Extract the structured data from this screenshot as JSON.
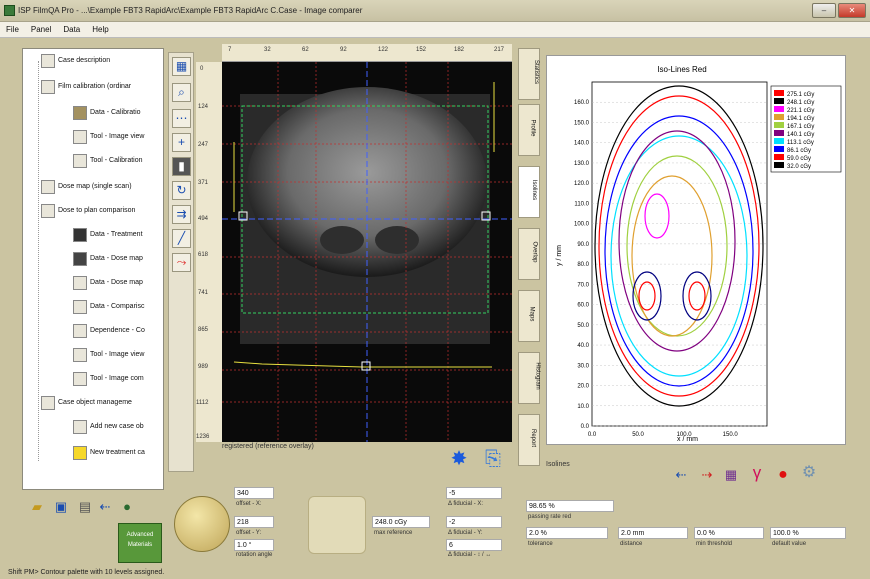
{
  "window": {
    "title": "ISP FilmQA Pro - ...\\Example FBT3 RapidArc\\Example FBT3 RapidArc C.Case - Image comparer",
    "min": "–",
    "max": "□",
    "close": "✕"
  },
  "menu": [
    "File",
    "Panel",
    "Data",
    "Help"
  ],
  "tree": [
    {
      "label": "Case description",
      "level": 0
    },
    {
      "label": "Film calibration (ordinar",
      "level": 0
    },
    {
      "label": "Data - Calibratio",
      "level": 1
    },
    {
      "label": "Tool - Image view",
      "level": 1
    },
    {
      "label": "Tool - Calibration",
      "level": 1
    },
    {
      "label": "Dose map (single scan)",
      "level": 0
    },
    {
      "label": "Dose to plan comparison",
      "level": 0
    },
    {
      "label": "Data - Treatment",
      "level": 1
    },
    {
      "label": "Data - Dose map",
      "level": 1
    },
    {
      "label": "Data - Dose map",
      "level": 1
    },
    {
      "label": "Data - Comparisc",
      "level": 1
    },
    {
      "label": "Dependence - Co",
      "level": 1
    },
    {
      "label": "Tool - Image view",
      "level": 1
    },
    {
      "label": "Tool - Image com",
      "level": 1
    },
    {
      "label": "Case object manageme",
      "level": 0
    },
    {
      "label": "Add new case ob",
      "level": 1
    },
    {
      "label": "New treatment ca",
      "level": 1
    }
  ],
  "ruler": {
    "top": [
      "7",
      "32",
      "62",
      "92",
      "122",
      "152",
      "182",
      "217"
    ],
    "left": [
      "0",
      "124",
      "247",
      "371",
      "494",
      "618",
      "741",
      "865",
      "989",
      "1112",
      "1236"
    ]
  },
  "image": {
    "caption": "registered (reference overlay)",
    "corner_label": "Adv"
  },
  "side_tabs": [
    "Statistics",
    "Profile",
    "Isolines",
    "Overlap",
    "Maps",
    "Histogram",
    "Report"
  ],
  "chart_data": {
    "type": "contour",
    "title": "Iso-Lines Red",
    "xlabel": "x / mm",
    "ylabel": "y / mm",
    "xlim": [
      0,
      190
    ],
    "ylim": [
      0,
      170
    ],
    "xticks": [
      "0.0",
      "50.0",
      "100.0",
      "150.0"
    ],
    "yticks": [
      "0.0",
      "10.0",
      "20.0",
      "30.0",
      "40.0",
      "50.0",
      "60.0",
      "70.0",
      "80.0",
      "90.0",
      "100.0",
      "110.0",
      "120.0",
      "130.0",
      "140.0",
      "150.0",
      "160.0"
    ],
    "legend": [
      {
        "label": "275.1 cGy",
        "color": "#ff0000"
      },
      {
        "label": "248.1 cGy",
        "color": "#000000"
      },
      {
        "label": "221.1 cGy",
        "color": "#ff00ff"
      },
      {
        "label": "194.1 cGy",
        "color": "#e0a030"
      },
      {
        "label": "167.1 cGy",
        "color": "#a0d040"
      },
      {
        "label": "140.1 cGy",
        "color": "#800080"
      },
      {
        "label": "113.1 cGy",
        "color": "#00e0ff"
      },
      {
        "label": "86.1 cGy",
        "color": "#0000ff"
      },
      {
        "label": "59.0 cGy",
        "color": "#ff0000"
      },
      {
        "label": "32.0 cGy",
        "color": "#000000"
      }
    ],
    "legend_position": "top-right"
  },
  "controls": {
    "offset_x": "340",
    "offset_x_label": "offset - X:",
    "offset_y": "218",
    "offset_y_label": "offset - Y:",
    "rotation": "1.0 °",
    "rotation_label": "rotation angle",
    "max_ref": "248.0 cGy",
    "max_ref_label": "max reference",
    "fid_x": "-5",
    "fid_x_label": "Δ fiducial - X:",
    "fid_y": "-2",
    "fid_y_label": "Δ fiducial - Y:",
    "fid_t": "6",
    "fid_t_label": "Δ fiducial - ↕ / ↔",
    "isolines_label": "Isolines"
  },
  "results": {
    "passing_rate": "98.65 %",
    "passing_label": "passing rate red",
    "tolerance": "2.0 %",
    "tolerance_label": "tolerance",
    "distance": "2.0 mm",
    "distance_label": "distance",
    "threshold": "0.0 %",
    "threshold_label": "min threshold",
    "default": "100.0 %",
    "default_label": "default value"
  },
  "status": "Shift PM> Contour palette with 10 levels assigned."
}
